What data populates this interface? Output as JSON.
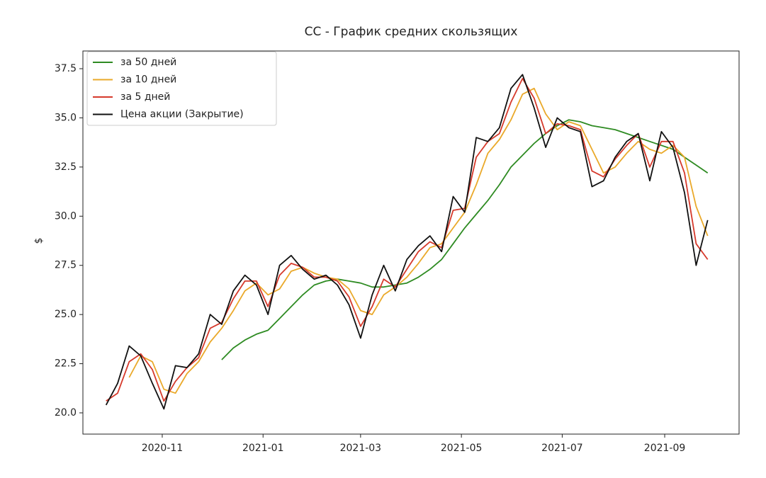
{
  "chart_data": {
    "type": "line",
    "title": "CC - График средних скользящих",
    "y_label": "$",
    "x": [
      "2020-09-28",
      "2020-10-05",
      "2020-10-12",
      "2020-10-19",
      "2020-10-26",
      "2020-11-02",
      "2020-11-09",
      "2020-11-16",
      "2020-11-23",
      "2020-11-30",
      "2020-12-07",
      "2020-12-14",
      "2020-12-21",
      "2020-12-28",
      "2021-01-04",
      "2021-01-11",
      "2021-01-18",
      "2021-01-25",
      "2021-02-01",
      "2021-02-08",
      "2021-02-15",
      "2021-02-22",
      "2021-03-01",
      "2021-03-08",
      "2021-03-15",
      "2021-03-22",
      "2021-03-29",
      "2021-04-05",
      "2021-04-12",
      "2021-04-19",
      "2021-04-26",
      "2021-05-03",
      "2021-05-10",
      "2021-05-17",
      "2021-05-24",
      "2021-05-31",
      "2021-06-07",
      "2021-06-14",
      "2021-06-21",
      "2021-06-28",
      "2021-07-05",
      "2021-07-12",
      "2021-07-19",
      "2021-07-26",
      "2021-08-02",
      "2021-08-09",
      "2021-08-16",
      "2021-08-23",
      "2021-08-30",
      "2021-09-06",
      "2021-09-13",
      "2021-09-20",
      "2021-09-27"
    ],
    "series": [
      {
        "name": "за 50 дней",
        "color": "#2e8b22",
        "values": [
          null,
          null,
          null,
          null,
          null,
          null,
          null,
          null,
          null,
          null,
          22.7,
          23.3,
          23.7,
          24.0,
          24.2,
          24.8,
          25.4,
          26.0,
          26.5,
          26.7,
          26.8,
          26.7,
          26.6,
          26.4,
          26.4,
          26.5,
          26.6,
          26.9,
          27.3,
          27.8,
          28.6,
          29.4,
          30.1,
          30.8,
          31.6,
          32.5,
          33.1,
          33.7,
          34.2,
          34.6,
          34.9,
          34.8,
          34.6,
          34.5,
          34.4,
          34.2,
          34.0,
          33.8,
          33.6,
          33.4,
          33.0,
          32.6,
          32.2
        ]
      },
      {
        "name": "за 10 дней",
        "color": "#eaa92a",
        "values": [
          null,
          null,
          21.8,
          22.9,
          22.6,
          21.2,
          21.0,
          22.0,
          22.6,
          23.6,
          24.3,
          25.2,
          26.2,
          26.6,
          26.0,
          26.3,
          27.2,
          27.4,
          27.1,
          26.9,
          26.8,
          26.3,
          25.2,
          25.0,
          26.0,
          26.4,
          26.9,
          27.6,
          28.4,
          28.6,
          29.4,
          30.2,
          31.6,
          33.2,
          33.9,
          34.9,
          36.2,
          36.5,
          35.2,
          34.4,
          34.8,
          34.6,
          33.4,
          32.2,
          32.5,
          33.2,
          33.8,
          33.4,
          33.2,
          33.6,
          33.0,
          30.5,
          29.0
        ]
      },
      {
        "name": "за 5 дней",
        "color": "#d63a2c",
        "values": [
          20.6,
          21.0,
          22.6,
          23.0,
          22.2,
          20.6,
          21.6,
          22.3,
          22.8,
          24.3,
          24.6,
          25.8,
          26.7,
          26.7,
          25.4,
          27.0,
          27.6,
          27.4,
          26.9,
          26.9,
          26.7,
          25.9,
          24.4,
          25.4,
          26.8,
          26.4,
          27.3,
          28.2,
          28.7,
          28.4,
          30.3,
          30.4,
          33.0,
          33.8,
          34.2,
          35.8,
          37.0,
          36.0,
          34.2,
          34.7,
          34.6,
          34.4,
          32.3,
          32.0,
          32.9,
          33.6,
          34.2,
          32.5,
          33.8,
          33.8,
          32.2,
          28.6,
          27.8
        ]
      },
      {
        "name": "Цена акции (Закрытие)",
        "color": "#111111",
        "values": [
          20.4,
          21.5,
          23.4,
          22.9,
          21.5,
          20.2,
          22.4,
          22.3,
          23.0,
          25.0,
          24.5,
          26.2,
          27.0,
          26.5,
          25.0,
          27.5,
          28.0,
          27.3,
          26.8,
          27.0,
          26.5,
          25.5,
          23.8,
          26.0,
          27.5,
          26.2,
          27.8,
          28.5,
          29.0,
          28.2,
          31.0,
          30.2,
          34.0,
          33.8,
          34.5,
          36.5,
          37.2,
          35.5,
          33.5,
          35.0,
          34.5,
          34.3,
          31.5,
          31.8,
          33.0,
          33.8,
          34.2,
          31.8,
          34.3,
          33.5,
          31.2,
          27.5,
          29.8
        ]
      }
    ],
    "xlim": [
      "2020-09-14",
      "2021-10-16"
    ],
    "xticks": [
      {
        "value": "2020-11-01",
        "label": "2020-11"
      },
      {
        "value": "2021-01-01",
        "label": "2021-01"
      },
      {
        "value": "2021-03-01",
        "label": "2021-03"
      },
      {
        "value": "2021-05-01",
        "label": "2021-05"
      },
      {
        "value": "2021-07-01",
        "label": "2021-07"
      },
      {
        "value": "2021-09-01",
        "label": "2021-09"
      }
    ],
    "ylim": [
      18.92,
      38.4
    ],
    "yticks": [
      {
        "value": 20,
        "label": "20.0"
      },
      {
        "value": 22.5,
        "label": "22.5"
      },
      {
        "value": 25,
        "label": "25.0"
      },
      {
        "value": 27.5,
        "label": "27.5"
      },
      {
        "value": 30,
        "label": "30.0"
      },
      {
        "value": 32.5,
        "label": "32.5"
      },
      {
        "value": 35,
        "label": "35.0"
      },
      {
        "value": 37.5,
        "label": "37.5"
      }
    ],
    "legend": "upper left"
  }
}
